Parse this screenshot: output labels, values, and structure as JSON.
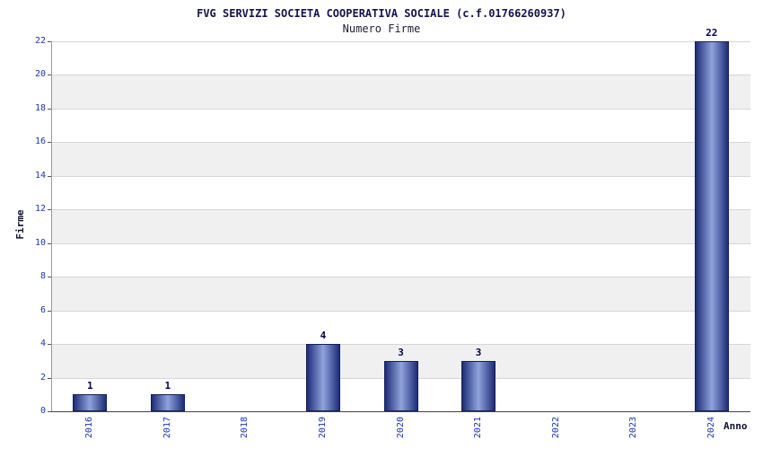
{
  "chart_data": {
    "type": "bar",
    "title": "FVG SERVIZI SOCIETA COOPERATIVA SOCIALE (c.f.01766260937)",
    "subtitle": "Numero Firme",
    "xlabel": "Anno",
    "ylabel": "Firme",
    "categories": [
      "2016",
      "2017",
      "2018",
      "2019",
      "2020",
      "2021",
      "2022",
      "2023",
      "2024"
    ],
    "values": [
      1,
      1,
      0,
      4,
      3,
      3,
      0,
      0,
      22
    ],
    "ylim": [
      0,
      22
    ],
    "ytick_step": 2,
    "grid": true,
    "legend": "none",
    "colors": {
      "bar_edge": "#1e2c77",
      "bar_center": "#8fa3dc",
      "bar_border": "#141f58",
      "band": "#f0f0f0",
      "grid_line": "#d6d6d6",
      "tick_label": "#1a35b8",
      "data_label": "#00004e",
      "title": "#14144f"
    }
  }
}
